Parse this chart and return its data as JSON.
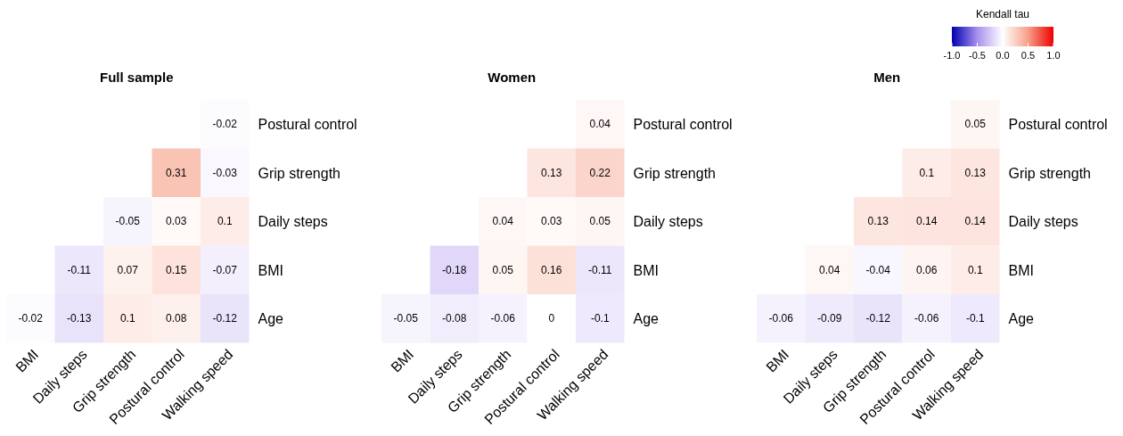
{
  "chart_data": [
    {
      "type": "heatmap",
      "title": "Full sample",
      "categories": [
        "BMI",
        "Daily steps",
        "Grip strength",
        "Postural control",
        "Walking speed"
      ],
      "y_categories": [
        "Postural control",
        "Grip strength",
        "Daily steps",
        "BMI",
        "Age"
      ],
      "cells": [
        [
          null,
          null,
          null,
          null,
          -0.02
        ],
        [
          null,
          null,
          null,
          0.31,
          -0.03
        ],
        [
          null,
          null,
          -0.05,
          0.03,
          0.1
        ],
        [
          null,
          -0.11,
          0.07,
          0.15,
          -0.07
        ],
        [
          -0.02,
          -0.13,
          0.1,
          0.08,
          -0.12
        ]
      ],
      "data_labels": true
    },
    {
      "type": "heatmap",
      "title": "Women",
      "categories": [
        "BMI",
        "Daily steps",
        "Grip strength",
        "Postural control",
        "Walking speed"
      ],
      "y_categories": [
        "Postural control",
        "Grip strength",
        "Daily steps",
        "BMI",
        "Age"
      ],
      "cells": [
        [
          null,
          null,
          null,
          null,
          0.04
        ],
        [
          null,
          null,
          null,
          0.13,
          0.22
        ],
        [
          null,
          null,
          0.04,
          0.03,
          0.05
        ],
        [
          null,
          -0.18,
          0.05,
          0.16,
          -0.11
        ],
        [
          -0.05,
          -0.08,
          -0.06,
          0,
          -0.1
        ]
      ],
      "data_labels": true
    },
    {
      "type": "heatmap",
      "title": "Men",
      "categories": [
        "BMI",
        "Daily steps",
        "Grip strength",
        "Postural control",
        "Walking speed"
      ],
      "y_categories": [
        "Postural control",
        "Grip strength",
        "Daily steps",
        "BMI",
        "Age"
      ],
      "cells": [
        [
          null,
          null,
          null,
          null,
          0.05
        ],
        [
          null,
          null,
          null,
          0.1,
          0.13
        ],
        [
          null,
          null,
          0.13,
          0.14,
          0.14
        ],
        [
          null,
          0.04,
          -0.04,
          0.06,
          0.1
        ],
        [
          -0.06,
          -0.09,
          -0.12,
          -0.06,
          -0.1
        ]
      ],
      "data_labels": true,
      "clim": [
        -1,
        1
      ],
      "clabel": "Kendall tau",
      "cticks": [
        {
          "value": -1,
          "label": "-1.0"
        },
        {
          "value": -0.5,
          "label": "-0.5"
        },
        {
          "value": 0,
          "label": "0.0"
        },
        {
          "value": 0.5,
          "label": "0.5"
        },
        {
          "value": 1,
          "label": "1.0"
        }
      ]
    }
  ]
}
